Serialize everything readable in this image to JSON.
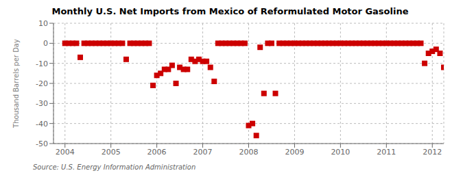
{
  "chart_data": {
    "type": "scatter",
    "title": "Monthly U.S. Net Imports from Mexico of Reformulated Motor Gasoline",
    "ylabel": "Thousand Barrels per Day",
    "annotations": [
      "Source: U.S. Energy Information Administration"
    ],
    "color": "#cc0000",
    "marker": "square",
    "grid": true,
    "xlim": [
      2003.75,
      2012.25
    ],
    "xticks": [
      2004,
      2005,
      2006,
      2007,
      2008,
      2009,
      2010,
      2011,
      2012
    ],
    "ylim": [
      -50,
      10
    ],
    "yticks": [
      -50,
      -40,
      -30,
      -20,
      -10,
      0,
      10
    ],
    "x": [
      2004.0,
      2004.083,
      2004.167,
      2004.25,
      2004.333,
      2004.417,
      2004.5,
      2004.583,
      2004.667,
      2004.75,
      2004.833,
      2004.917,
      2005.0,
      2005.083,
      2005.167,
      2005.25,
      2005.333,
      2005.417,
      2005.5,
      2005.583,
      2005.667,
      2005.75,
      2005.833,
      2005.917,
      2006.0,
      2006.083,
      2006.167,
      2006.25,
      2006.333,
      2006.417,
      2006.5,
      2006.583,
      2006.667,
      2006.75,
      2006.833,
      2006.917,
      2007.0,
      2007.083,
      2007.167,
      2007.25,
      2007.333,
      2007.417,
      2007.5,
      2007.583,
      2007.667,
      2007.75,
      2007.833,
      2007.917,
      2008.0,
      2008.083,
      2008.167,
      2008.25,
      2008.333,
      2008.417,
      2008.5,
      2008.583,
      2008.667,
      2008.75,
      2008.833,
      2008.917,
      2009.0,
      2009.083,
      2009.167,
      2009.25,
      2009.333,
      2009.417,
      2009.5,
      2009.583,
      2009.667,
      2009.75,
      2009.833,
      2009.917,
      2010.0,
      2010.083,
      2010.167,
      2010.25,
      2010.333,
      2010.417,
      2010.5,
      2010.583,
      2010.667,
      2010.75,
      2010.833,
      2010.917,
      2011.0,
      2011.083,
      2011.167,
      2011.25,
      2011.333,
      2011.417,
      2011.5,
      2011.583,
      2011.667,
      2011.75,
      2011.833,
      2011.917,
      2012.0,
      2012.083,
      2012.167,
      2012.25
    ],
    "values": [
      0,
      0,
      0,
      0,
      -7,
      0,
      0,
      0,
      0,
      0,
      0,
      0,
      0,
      0,
      0,
      0,
      -8,
      0,
      0,
      0,
      0,
      0,
      0,
      -21,
      -16,
      -15,
      -13,
      -13,
      -11,
      -20,
      -12,
      -13,
      -13,
      -8,
      -9,
      -8,
      -9,
      -9,
      -12,
      -19,
      0,
      0,
      0,
      0,
      0,
      0,
      0,
      0,
      -41,
      -40,
      -46,
      -2,
      -25,
      0,
      0,
      -25,
      0,
      0,
      0,
      0,
      0,
      0,
      0,
      0,
      0,
      0,
      0,
      0,
      0,
      0,
      0,
      0,
      0,
      0,
      0,
      0,
      0,
      0,
      0,
      0,
      0,
      0,
      0,
      0,
      0,
      0,
      0,
      0,
      0,
      0,
      0,
      0,
      0,
      0,
      -10,
      -5,
      -4,
      -3,
      -5,
      -12
    ]
  }
}
